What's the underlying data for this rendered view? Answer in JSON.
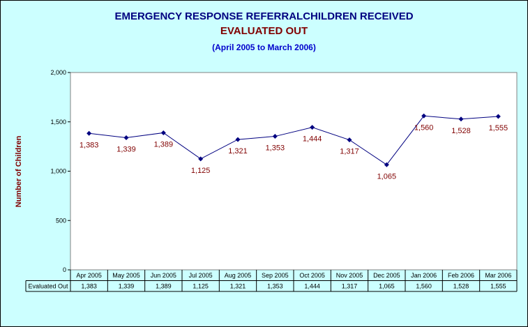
{
  "chart_data": {
    "type": "line",
    "title": "EMERGENCY RESPONSE REFERRALCHILDREN RECEIVED",
    "title_line2": "EVALUATED OUT",
    "subtitle": "(April 2005 to March 2006)",
    "ylabel": "Number of Children",
    "ylim": [
      0,
      2000
    ],
    "yticks": [
      "0",
      "500",
      "1,000",
      "1,500",
      "2,000"
    ],
    "yticks_values": [
      0,
      500,
      1000,
      1500,
      2000
    ],
    "categories": [
      "Apr 2005",
      "May 2005",
      "Jun 2005",
      "Jul 2005",
      "Aug 2005",
      "Sep 2005",
      "Oct 2005",
      "Nov 2005",
      "Dec 2005",
      "Jan 2006",
      "Feb 2006",
      "Mar 2006"
    ],
    "series": [
      {
        "name": "Evaluated Out",
        "values": [
          1383,
          1339,
          1389,
          1125,
          1321,
          1353,
          1444,
          1317,
          1065,
          1560,
          1528,
          1555
        ],
        "labels": [
          "1,383",
          "1,339",
          "1,389",
          "1,125",
          "1,321",
          "1,353",
          "1,444",
          "1,317",
          "1,065",
          "1,560",
          "1,528",
          "1,555"
        ]
      }
    ],
    "grid": false,
    "data_table": true,
    "colors": {
      "background": "#ccffff",
      "plot_area": "#ffffff",
      "line": "#000080",
      "marker": "#000080",
      "data_label": "#800000",
      "title": "#000080",
      "title_line2": "#800000",
      "subtitle": "#0000cc",
      "ylabel": "#800000"
    }
  }
}
